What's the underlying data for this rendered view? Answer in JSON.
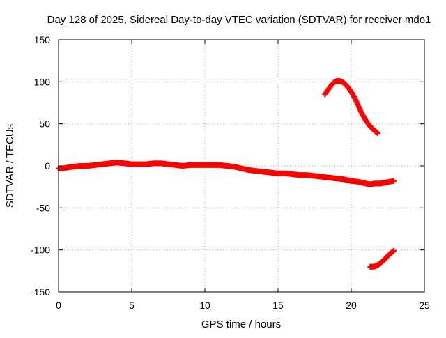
{
  "chart_data": {
    "type": "scatter",
    "title": "Day 128 of 2025, Sidereal Day-to-day VTEC variation (SDTVAR) for receiver mdo1",
    "xlabel": "GPS time / hours",
    "ylabel": "SDTVAR / TECUs",
    "xlim": [
      0,
      25
    ],
    "ylim": [
      -150,
      150
    ],
    "xticks": [
      0,
      5,
      10,
      15,
      20,
      25
    ],
    "yticks": [
      -150,
      -100,
      -50,
      0,
      50,
      100,
      150
    ],
    "xtick_labels": [
      "0",
      "5",
      "10",
      "15",
      "20",
      "25"
    ],
    "ytick_labels": [
      "-150",
      "-100",
      "-50",
      "0",
      "50",
      "100",
      "150"
    ],
    "grid": true,
    "legend": "none",
    "marker": "plus",
    "color": "#ff0000",
    "series": [
      {
        "name": "main-trace",
        "x": [
          0.0,
          0.3,
          0.6,
          1.0,
          1.5,
          2.0,
          2.5,
          3.0,
          3.5,
          4.0,
          4.5,
          5.0,
          5.5,
          6.0,
          6.5,
          7.0,
          7.5,
          8.0,
          8.5,
          9.0,
          9.5,
          10.0,
          10.5,
          11.0,
          11.5,
          12.0,
          12.5,
          13.0,
          13.5,
          14.0,
          14.5,
          15.0,
          15.5,
          16.0,
          16.5,
          17.0,
          17.5,
          18.0,
          18.5,
          19.0,
          19.5,
          20.0,
          20.5,
          21.0,
          21.3,
          21.6,
          22.0,
          22.3,
          22.6,
          22.9
        ],
        "y": [
          -3,
          -3,
          -2,
          -1,
          0,
          0,
          1,
          2,
          3,
          4,
          3,
          2,
          2,
          2,
          3,
          3,
          2,
          1,
          0,
          1,
          1,
          1,
          1,
          1,
          0,
          -1,
          -3,
          -5,
          -6,
          -7,
          -8,
          -9,
          -9,
          -10,
          -11,
          -11,
          -12,
          -13,
          -14,
          -15,
          -16,
          -18,
          -19,
          -21,
          -22,
          -21,
          -21,
          -20,
          -19,
          -18
        ]
      },
      {
        "name": "upper-arc",
        "x": [
          18.2,
          18.4,
          18.6,
          18.8,
          19.0,
          19.2,
          19.4,
          19.6,
          19.8,
          20.0,
          20.2,
          20.4,
          20.6,
          20.8,
          21.0,
          21.2,
          21.4,
          21.6,
          21.8
        ],
        "y": [
          85,
          90,
          95,
          99,
          101,
          101,
          100,
          97,
          93,
          88,
          82,
          75,
          67,
          60,
          54,
          49,
          45,
          42,
          39
        ]
      },
      {
        "name": "lower-arc",
        "x": [
          21.3,
          21.5,
          21.7,
          21.9,
          22.1,
          22.3,
          22.5,
          22.7,
          22.9
        ],
        "y": [
          -120,
          -120,
          -119,
          -117,
          -114,
          -111,
          -107,
          -104,
          -101
        ]
      }
    ]
  }
}
